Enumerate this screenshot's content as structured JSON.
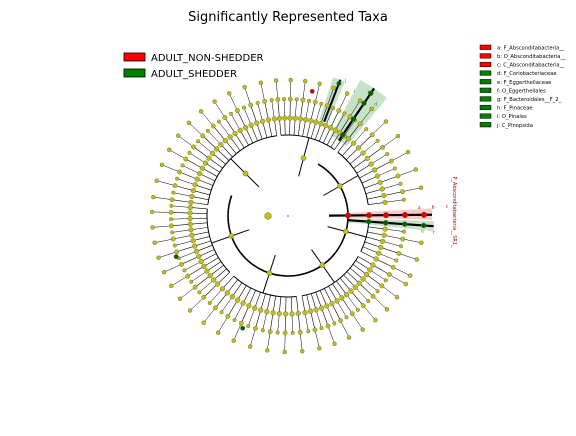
{
  "chart_data": {
    "type": "cladogram",
    "title": "Significantly Represented Taxa",
    "groups": [
      {
        "name": "ADULT_NON-SHEDDER",
        "color": "#ff0000"
      },
      {
        "name": "ADULT_SHEDDER",
        "color": "#008000"
      }
    ],
    "taxa_legend": [
      {
        "key": "a",
        "label": "a: F_Absconditabacteria__",
        "group": "ADULT_NON-SHEDDER"
      },
      {
        "key": "b",
        "label": "b: O_Absconditabacteria__",
        "group": "ADULT_NON-SHEDDER"
      },
      {
        "key": "c",
        "label": "c: C_Absconditabacteria__",
        "group": "ADULT_NON-SHEDDER"
      },
      {
        "key": "d",
        "label": "d: F_Coriobacteriaceae",
        "group": "ADULT_SHEDDER"
      },
      {
        "key": "e",
        "label": "e: F_Eggerthellaceae",
        "group": "ADULT_SHEDDER"
      },
      {
        "key": "f",
        "label": "f: O_Eggerthellales",
        "group": "ADULT_SHEDDER"
      },
      {
        "key": "g",
        "label": "g: F_Bacteroidales__F_2_",
        "group": "ADULT_SHEDDER"
      },
      {
        "key": "h",
        "label": "h: F_Pinaceae",
        "group": "ADULT_SHEDDER"
      },
      {
        "key": "i",
        "label": "i: O_Pinales",
        "group": "ADULT_SHEDDER"
      },
      {
        "key": "j",
        "label": "j: C_Pinopsida",
        "group": "ADULT_SHEDDER"
      }
    ],
    "phylum_label": "P_Absconditabacteria__SR1_",
    "highlight_letters": {
      "red_clade": [
        "a",
        "b",
        "c"
      ],
      "green_clade_right": [
        "e",
        "f"
      ],
      "green_clade_top": [
        "d",
        "h",
        "i",
        "j"
      ]
    },
    "colors": {
      "node_default": "#bfbf14",
      "node_red": "#dd0000",
      "node_green": "#006400",
      "branch": "#000000",
      "shade_red": "#ff9999",
      "shade_green": "#99cc99"
    }
  }
}
